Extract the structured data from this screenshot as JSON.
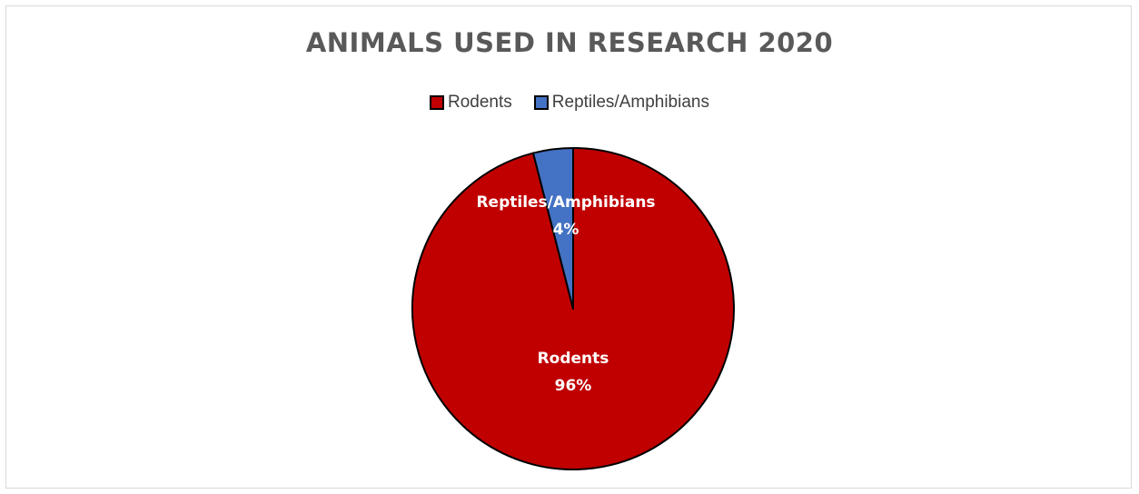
{
  "chart_data": {
    "type": "pie",
    "title": "ANIMALS USED IN RESEARCH 2020",
    "legend_position": "top",
    "categories": [
      "Rodents",
      "Reptiles/Amphibians"
    ],
    "values": [
      96,
      4
    ],
    "data_labels": [
      {
        "category": "Rodents",
        "percent": "96%"
      },
      {
        "category": "Reptiles/Amphibians",
        "percent": "4%"
      }
    ],
    "colors": [
      "#c00000",
      "#4472c4"
    ]
  }
}
